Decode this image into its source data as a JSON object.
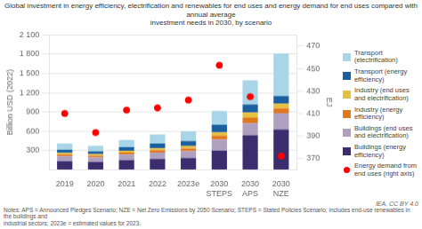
{
  "chart_data": {
    "type": "bar",
    "title": "Global investment in energy efficiency, electrification and renewables for end uses and energy demand for end uses compared with annual average\ninvestment needs in 2030, by scenario",
    "ylabel": "Billion USD (2022)",
    "y2label": "EJ",
    "annotations": [
      "Notes: APS = Announced Pledges Scenario; NZE = Net Zero Emissions by 2050 Scenario; STEPS = Stated Policies Scenario; includes end-use renewables in the buildings and\nindustrial sectors; 2023e = estimated values for 2023.",
      "IEA. CC BY 4.0"
    ],
    "categories": [
      "2019",
      "2020",
      "2021",
      "2022",
      "2023e",
      "2030\nSTEPS",
      "2030\nAPS",
      "2030\nNZE"
    ],
    "stacked": true,
    "grid": true,
    "legend": "right",
    "series": [
      {
        "name": "Buildings (energy\nefficiency)",
        "type": "bar",
        "color": "#3c2d6e",
        "values": [
          130,
          120,
          148,
          168,
          182,
          295,
          535,
          625
        ]
      },
      {
        "name": "Buildings (end uses\nand electrification)",
        "type": "bar",
        "color": "#b0a0c0",
        "values": [
          78,
          72,
          88,
          98,
          108,
          175,
          188,
          255
        ]
      },
      {
        "name": "Industry (energy\nefficiency)",
        "type": "bar",
        "color": "#e07820",
        "values": [
          28,
          26,
          30,
          36,
          40,
          58,
          88,
          78
        ]
      },
      {
        "name": "Industry (end uses\nand electrification)",
        "type": "bar",
        "color": "#e8c040",
        "values": [
          26,
          24,
          28,
          33,
          38,
          53,
          78,
          72
        ]
      },
      {
        "name": "Transport (energy\nefficiency)",
        "type": "bar",
        "color": "#1a5fa0",
        "values": [
          48,
          43,
          58,
          72,
          78,
          118,
          128,
          118
        ]
      },
      {
        "name": "Transport\n(electrification)",
        "type": "bar",
        "color": "#a8d5e8",
        "values": [
          98,
          88,
          112,
          142,
          152,
          215,
          375,
          665
        ]
      },
      {
        "name": "Energy demand from\nend uses (right axis)",
        "type": "scatter",
        "marker": "circle",
        "color": "red",
        "axis": "y2",
        "values": [
          410,
          393,
          413,
          415,
          422,
          453,
          425,
          372
        ]
      }
    ],
    "ylim": [
      0,
      2100
    ],
    "yticks": [
      300,
      600,
      900,
      {
        "value": 1200,
        "label": "1 200"
      },
      {
        "value": 1500,
        "label": "1 500"
      },
      {
        "value": 1800,
        "label": "1 800"
      },
      {
        "value": 2100,
        "label": "2 100"
      }
    ],
    "y2lim": [
      360,
      480
    ],
    "y2ticks": [
      370,
      390,
      410,
      430,
      450,
      470
    ]
  }
}
